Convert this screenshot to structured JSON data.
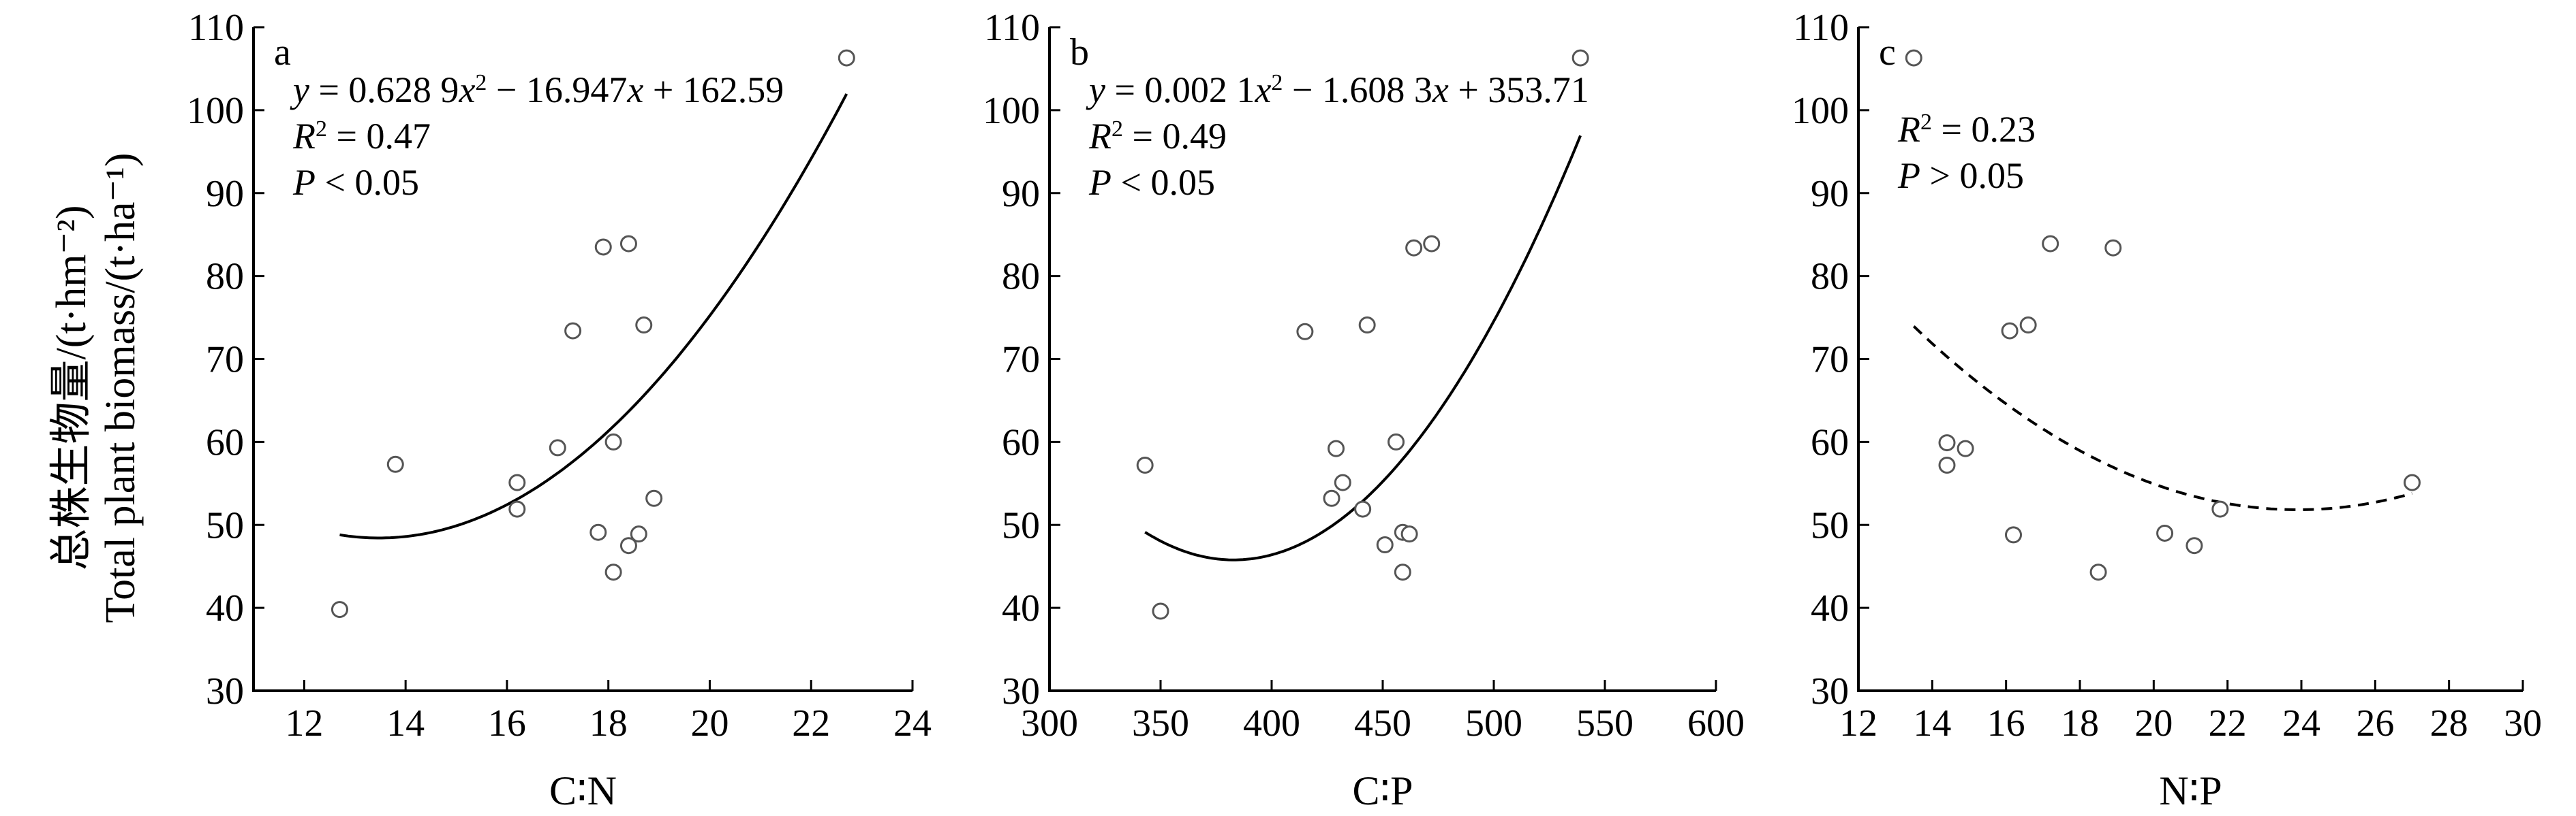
{
  "y_axis_title": {
    "zh": "总株生物量/(t·hm⁻²)",
    "en": "Total plant biomass/(t·ha⁻¹)"
  },
  "chart_data": [
    {
      "type": "scatter",
      "panel_label": "a",
      "xlabel": "C∶N",
      "xlim": [
        11,
        24
      ],
      "xticks": [
        12,
        14,
        16,
        18,
        20,
        22,
        24
      ],
      "ylim": [
        30,
        110
      ],
      "yticks": [
        30,
        40,
        50,
        60,
        70,
        80,
        90,
        100,
        110
      ],
      "points": [
        {
          "x": 12.7,
          "y": 39.8
        },
        {
          "x": 13.8,
          "y": 57.3
        },
        {
          "x": 16.2,
          "y": 55.1
        },
        {
          "x": 16.2,
          "y": 51.9
        },
        {
          "x": 17.0,
          "y": 59.3
        },
        {
          "x": 17.3,
          "y": 73.4
        },
        {
          "x": 17.8,
          "y": 49.1
        },
        {
          "x": 17.9,
          "y": 83.5
        },
        {
          "x": 18.1,
          "y": 60.0
        },
        {
          "x": 18.1,
          "y": 44.3
        },
        {
          "x": 18.4,
          "y": 83.9
        },
        {
          "x": 18.4,
          "y": 47.5
        },
        {
          "x": 18.6,
          "y": 48.9
        },
        {
          "x": 18.7,
          "y": 74.1
        },
        {
          "x": 18.9,
          "y": 53.2
        },
        {
          "x": 22.7,
          "y": 106.3
        }
      ],
      "fit": {
        "kind": "quadratic",
        "coef": [
          0.6289,
          -16.947,
          162.59
        ],
        "x_range": [
          12.7,
          22.7
        ],
        "style": "solid"
      },
      "annotation": {
        "line1_parts": [
          "y",
          " = 0.628 9",
          "x",
          "2",
          " − 16.947",
          "x",
          " + 162.59"
        ],
        "r2_label": "R",
        "r2_sup": "2",
        "r2_value": " = 0.47",
        "p_label": "P",
        "p_value": " < 0.05"
      }
    },
    {
      "type": "scatter",
      "panel_label": "b",
      "xlabel": "C∶P",
      "xlim": [
        300,
        600
      ],
      "xticks": [
        300,
        350,
        400,
        450,
        500,
        550,
        600
      ],
      "ylim": [
        30,
        110
      ],
      "yticks": [
        30,
        40,
        50,
        60,
        70,
        80,
        90,
        100,
        110
      ],
      "points": [
        {
          "x": 343,
          "y": 57.2
        },
        {
          "x": 350,
          "y": 39.6
        },
        {
          "x": 415,
          "y": 73.3
        },
        {
          "x": 427,
          "y": 53.2
        },
        {
          "x": 429,
          "y": 59.2
        },
        {
          "x": 432,
          "y": 55.1
        },
        {
          "x": 441,
          "y": 51.9
        },
        {
          "x": 443,
          "y": 74.1
        },
        {
          "x": 451,
          "y": 47.6
        },
        {
          "x": 456,
          "y": 60.0
        },
        {
          "x": 459,
          "y": 44.3
        },
        {
          "x": 459,
          "y": 49.1
        },
        {
          "x": 462,
          "y": 48.9
        },
        {
          "x": 464,
          "y": 83.4
        },
        {
          "x": 472,
          "y": 83.9
        },
        {
          "x": 539,
          "y": 106.3
        }
      ],
      "fit": {
        "kind": "quadratic",
        "coef": [
          0.0021,
          -1.6083,
          353.71
        ],
        "x_range": [
          343,
          539
        ],
        "style": "solid"
      },
      "annotation": {
        "line1_parts": [
          "y",
          " = 0.002 1",
          "x",
          "2",
          " − 1.608 3",
          "x",
          " + 353.71"
        ],
        "r2_label": "R",
        "r2_sup": "2",
        "r2_value": " = 0.49",
        "p_label": "P",
        "p_value": " < 0.05"
      }
    },
    {
      "type": "scatter",
      "panel_label": "c",
      "xlabel": "N∶P",
      "xlim": [
        12,
        30
      ],
      "xticks": [
        12,
        14,
        16,
        18,
        20,
        22,
        24,
        26,
        28,
        30
      ],
      "ylim": [
        30,
        110
      ],
      "yticks": [
        30,
        40,
        50,
        60,
        70,
        80,
        90,
        100,
        110
      ],
      "points": [
        {
          "x": 13.5,
          "y": 106.3
        },
        {
          "x": 14.4,
          "y": 59.9
        },
        {
          "x": 14.4,
          "y": 57.2
        },
        {
          "x": 14.9,
          "y": 59.2
        },
        {
          "x": 16.1,
          "y": 73.4
        },
        {
          "x": 16.6,
          "y": 74.1
        },
        {
          "x": 16.2,
          "y": 48.8
        },
        {
          "x": 17.2,
          "y": 83.9
        },
        {
          "x": 18.5,
          "y": 44.3
        },
        {
          "x": 18.9,
          "y": 83.4
        },
        {
          "x": 20.3,
          "y": 49.0
        },
        {
          "x": 21.1,
          "y": 47.5
        },
        {
          "x": 21.8,
          "y": 51.9
        },
        {
          "x": 27.0,
          "y": 55.1
        }
      ],
      "fit": {
        "kind": "quadratic",
        "coef": [
          0.2044,
          -9.771,
          168.6
        ],
        "x_range": [
          13.5,
          27.0
        ],
        "style": "dashed"
      },
      "annotation": {
        "r2_label": "R",
        "r2_sup": "2",
        "r2_value": " = 0.23",
        "p_label": "P",
        "p_value": " > 0.05"
      }
    }
  ]
}
